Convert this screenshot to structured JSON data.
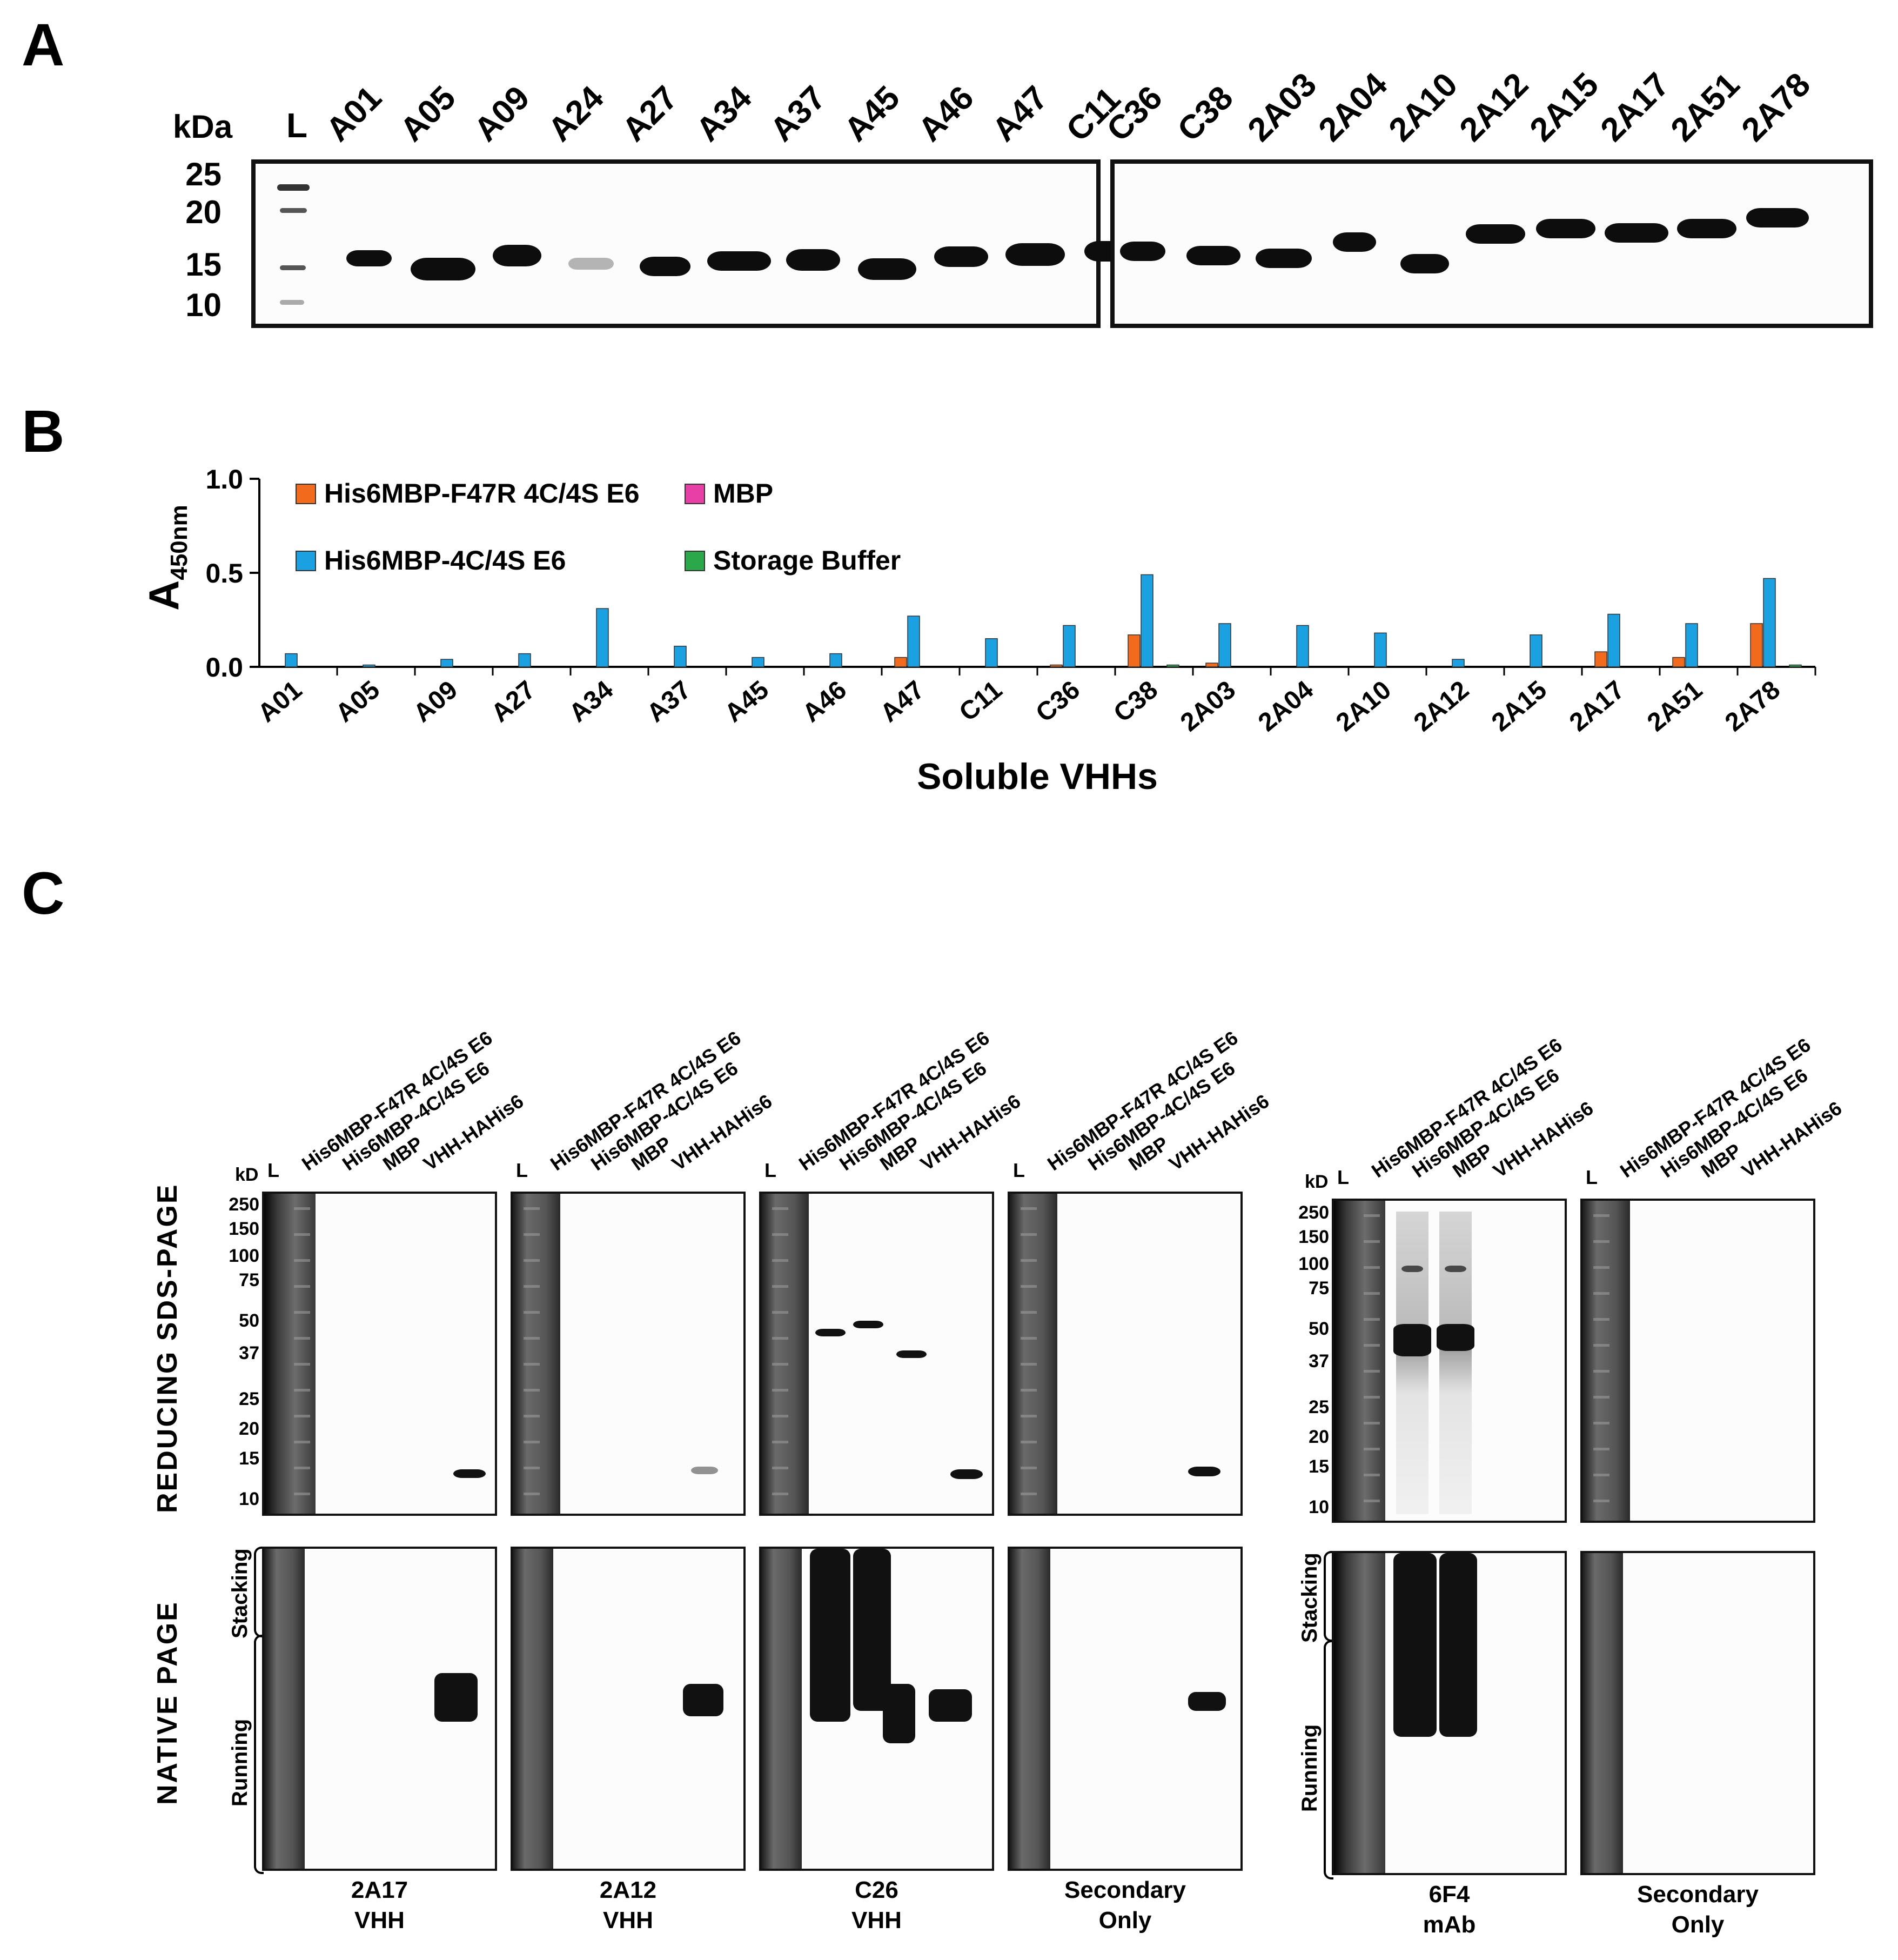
{
  "panelA": {
    "letter": "A",
    "kda_label": "kDa",
    "ladder_label": "L",
    "mw_marks": [
      "25",
      "20",
      "15",
      "10"
    ],
    "lanes_left": [
      "A01",
      "A05",
      "A09",
      "A24",
      "A27",
      "A34",
      "A37",
      "A45",
      "A46",
      "A47",
      "C11"
    ],
    "lanes_right": [
      "C36",
      "C38",
      "2A03",
      "2A04",
      "2A10",
      "2A12",
      "2A15",
      "2A17",
      "2A51",
      "2A78"
    ]
  },
  "panelB": {
    "letter": "B",
    "chart_data": {
      "type": "bar",
      "title": "",
      "xlabel": "Soluble VHHs",
      "ylabel": "A",
      "ylabel_sub": "450nm",
      "ylim": [
        0,
        1.0
      ],
      "yticks": [
        "0.0",
        "0.5",
        "1.0"
      ],
      "categories": [
        "A01",
        "A05",
        "A09",
        "A27",
        "A34",
        "A37",
        "A45",
        "A46",
        "A47",
        "C11",
        "C36",
        "C38",
        "2A03",
        "2A04",
        "2A10",
        "2A12",
        "2A15",
        "2A17",
        "2A51",
        "2A78"
      ],
      "series": [
        {
          "name": "His6MBP-F47R 4C/4S E6",
          "color": "#f26b1d",
          "values": [
            0.0,
            0.0,
            0.0,
            0.0,
            0.0,
            0.0,
            0.0,
            0.0,
            0.05,
            0.0,
            0.01,
            0.17,
            0.02,
            0.0,
            0.0,
            0.0,
            0.0,
            0.08,
            0.05,
            0.23
          ]
        },
        {
          "name": "His6MBP-4C/4S E6",
          "color": "#1ba1e2",
          "values": [
            0.07,
            0.01,
            0.04,
            0.07,
            0.31,
            0.11,
            0.05,
            0.07,
            0.27,
            0.15,
            0.22,
            0.49,
            0.23,
            0.22,
            0.18,
            0.04,
            0.17,
            0.28,
            0.23,
            0.47
          ]
        },
        {
          "name": "MBP",
          "color": "#e83fa7",
          "values": [
            0.0,
            0.0,
            0.0,
            0.0,
            0.0,
            0.0,
            0.0,
            0.0,
            0.0,
            0.0,
            0.0,
            0.0,
            0.0,
            0.0,
            0.0,
            0.0,
            0.0,
            0.0,
            0.0,
            0.0
          ]
        },
        {
          "name": "Storage Buffer",
          "color": "#2aa84a",
          "values": [
            0.0,
            0.0,
            0.0,
            0.0,
            0.0,
            0.0,
            0.0,
            0.0,
            0.0,
            0.0,
            0.0,
            0.01,
            0.0,
            0.0,
            0.0,
            0.0,
            0.0,
            0.0,
            0.0,
            0.01
          ]
        }
      ],
      "legend_position": "top-left"
    }
  },
  "panelC": {
    "letter": "C",
    "row_label_top": "REDUCING SDS-PAGE",
    "row_label_bottom": "NATIVE PAGE",
    "stacking_label": "Stacking",
    "running_label": "Running",
    "kd_label": "kD",
    "ladder_label": "L",
    "kd_marks": [
      "250",
      "150",
      "100",
      "75",
      "50",
      "37",
      "25",
      "20",
      "15",
      "10"
    ],
    "lane_labels": [
      "His6MBP-F47R 4C/4S E6",
      "His6MBP-4C/4S E6",
      "MBP",
      "VHH-HAHis6"
    ],
    "captions": [
      {
        "line1": "2A17",
        "line2": "VHH"
      },
      {
        "line1": "2A12",
        "line2": "VHH"
      },
      {
        "line1": "C26",
        "line2": "VHH"
      },
      {
        "line1": "Secondary",
        "line2": "Only"
      },
      {
        "line1": "6F4",
        "line2": "mAb"
      },
      {
        "line1": "Secondary",
        "line2": "Only"
      }
    ]
  }
}
